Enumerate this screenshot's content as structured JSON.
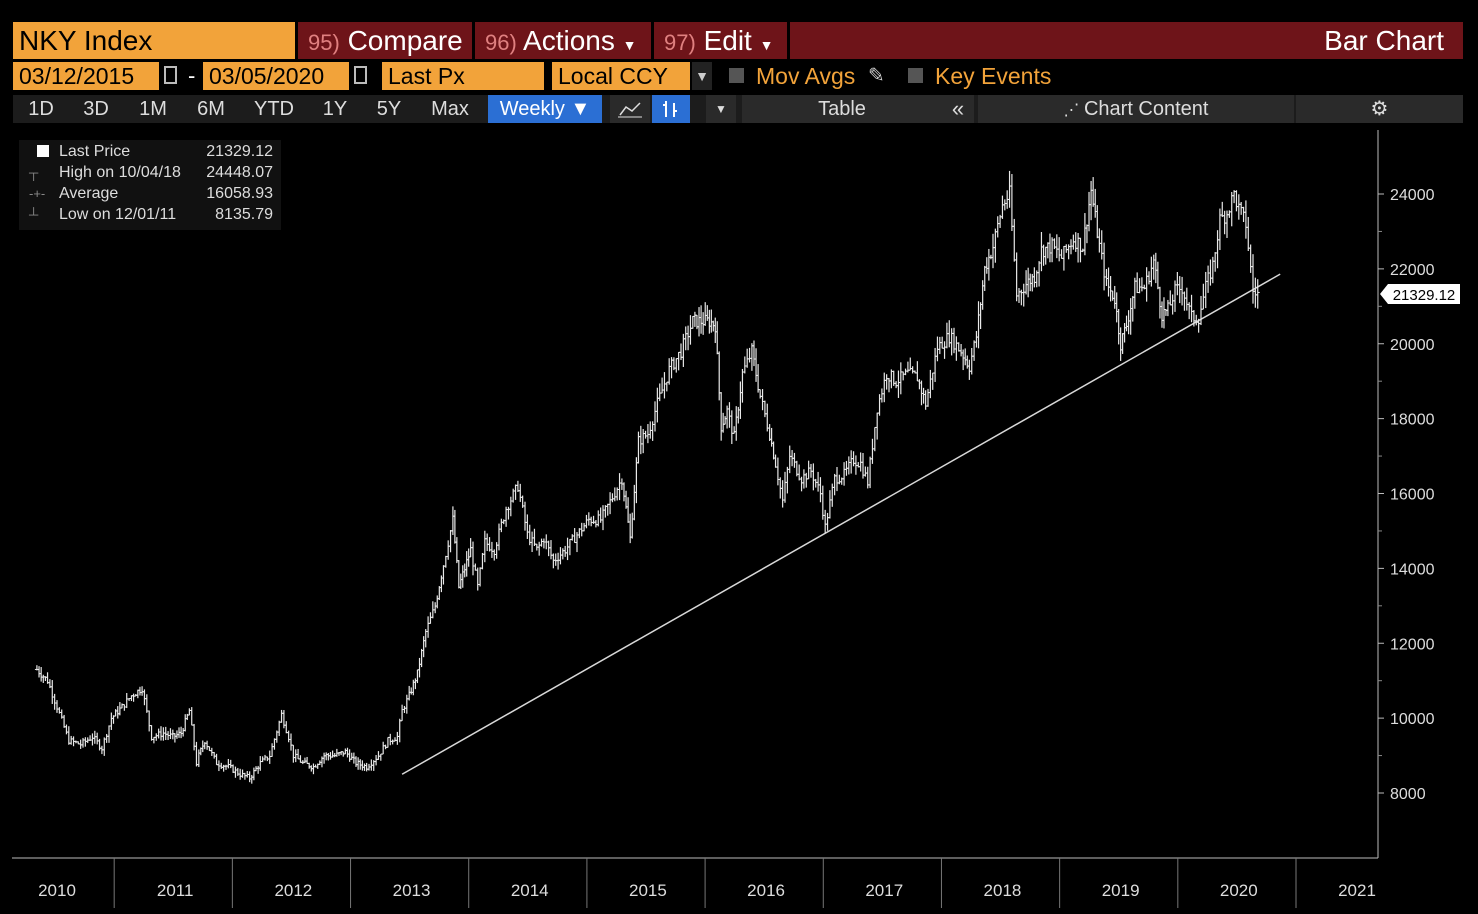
{
  "header": {
    "ticker": "NKY Index",
    "compare_num": "95)",
    "compare_label": "Compare",
    "actions_num": "96)",
    "actions_label": "Actions",
    "edit_num": "97)",
    "edit_label": "Edit",
    "chart_type": "Bar Chart"
  },
  "params": {
    "start_date": "03/12/2015",
    "end_date": "03/05/2020",
    "field": "Last Px",
    "currency": "Local CCY",
    "mov_avgs": "Mov Avgs",
    "key_events": "Key Events"
  },
  "toolbar": {
    "periods": [
      "1D",
      "3D",
      "1M",
      "6M",
      "YTD",
      "1Y",
      "5Y",
      "Max"
    ],
    "frequency": "Weekly ▼",
    "table": "Table",
    "collapse": "«",
    "chart_content": "Chart Content"
  },
  "legend": {
    "last_label": "Last Price",
    "last_value": "21329.12",
    "high_label": "High on 10/04/18",
    "high_value": "24448.07",
    "avg_label": "Average",
    "avg_value": "16058.93",
    "low_label": "Low on 12/01/11",
    "low_value": "8135.79"
  },
  "colors": {
    "accent": "#f2a33a",
    "header_bg": "#6e1419",
    "selected": "#2b6fd4",
    "price": "#ffffff"
  },
  "chart_data": {
    "type": "line",
    "x_type": "year",
    "ylim": [
      6500,
      25500
    ],
    "xlim": [
      2009.8,
      2021.2
    ],
    "yticks": [
      8000,
      10000,
      12000,
      14000,
      16000,
      18000,
      20000,
      22000,
      24000
    ],
    "ytick_labels": [
      "8000",
      "10000",
      "12000",
      "14000",
      "16000",
      "18000",
      "20000",
      "22000",
      "24000"
    ],
    "xticks": [
      "2010",
      "2011",
      "2012",
      "2013",
      "2014",
      "2015",
      "2016",
      "2017",
      "2018",
      "2019",
      "2020",
      "2021"
    ],
    "last_value_label": "21329.12",
    "series": [
      {
        "x": [
          2009.83,
          2009.92,
          2010.0,
          2010.1,
          2010.2,
          2010.3,
          2010.38,
          2010.46,
          2010.55,
          2010.63,
          2010.72,
          2010.8,
          2010.9,
          2010.98,
          2011.05,
          2011.12,
          2011.18,
          2011.2,
          2011.25,
          2011.35,
          2011.45,
          2011.55,
          2011.63,
          2011.72,
          2011.8,
          2011.9,
          2011.96,
          2012.0,
          2012.08,
          2012.17,
          2012.26,
          2012.35,
          2012.44,
          2012.53,
          2012.62,
          2012.72,
          2012.8,
          2012.88,
          2012.92,
          2012.98,
          2013.05,
          2013.12,
          2013.2,
          2013.27,
          2013.35,
          2013.4,
          2013.45,
          2013.5,
          2013.56,
          2013.62,
          2013.7,
          2013.8,
          2013.9,
          2013.98,
          2014.06,
          2014.12,
          2014.2,
          2014.3,
          2014.4,
          2014.5,
          2014.6,
          2014.7,
          2014.78,
          2014.85,
          2014.92,
          2015.0,
          2015.08,
          2015.18,
          2015.28,
          2015.38,
          2015.45,
          2015.52,
          2015.57,
          2015.62,
          2015.67,
          2015.73,
          2015.8,
          2015.88,
          2015.95,
          2016.03,
          2016.08,
          2016.14,
          2016.2,
          2016.3,
          2016.38,
          2016.46,
          2016.5,
          2016.58,
          2016.66,
          2016.74,
          2016.8,
          2016.86,
          2016.94,
          2017.02,
          2017.1,
          2017.2,
          2017.28,
          2017.35,
          2017.45,
          2017.55,
          2017.65,
          2017.72,
          2017.78,
          2017.85,
          2017.92,
          2018.0,
          2018.06,
          2018.12,
          2018.2,
          2018.27,
          2018.33,
          2018.42,
          2018.5,
          2018.6,
          2018.68,
          2018.75,
          2018.82,
          2018.88,
          2018.95,
          2019.0,
          2019.05,
          2019.12,
          2019.2,
          2019.28,
          2019.35,
          2019.4,
          2019.46,
          2019.52,
          2019.6,
          2019.66,
          2019.72,
          2019.78,
          2019.84,
          2019.9,
          2019.96,
          2020.0,
          2020.06,
          2020.12,
          2020.16
        ],
        "values": [
          11300,
          11000,
          10300,
          9400,
          9300,
          9500,
          9200,
          10000,
          10300,
          10600,
          10800,
          9500,
          9600,
          9500,
          9600,
          10200,
          8800,
          9000,
          9400,
          8800,
          8700,
          8500,
          8400,
          8800,
          9000,
          10100,
          9500,
          9000,
          8800,
          8700,
          9000,
          9000,
          9100,
          8800,
          8700,
          9000,
          9400,
          9500,
          10200,
          10600,
          11200,
          12300,
          13000,
          14100,
          15300,
          13500,
          14000,
          14500,
          13500,
          14700,
          14500,
          15600,
          16200,
          14900,
          14500,
          14800,
          14200,
          14500,
          14900,
          15300,
          15300,
          15900,
          16400,
          14800,
          17400,
          17600,
          18400,
          19300,
          19800,
          20600,
          20600,
          20600,
          20500,
          17800,
          18200,
          17500,
          19200,
          19800,
          18600,
          17600,
          16800,
          15800,
          17000,
          16400,
          16600,
          16000,
          15100,
          16400,
          16500,
          16900,
          16800,
          16300,
          18300,
          19200,
          19000,
          19200,
          19100,
          18400,
          19900,
          20200,
          19800,
          19400,
          20200,
          22000,
          22600,
          23700,
          24000,
          21300,
          21600,
          21800,
          22500,
          22600,
          22300,
          22800,
          22600,
          24100,
          22600,
          21600,
          21200,
          20000,
          20500,
          21500,
          21500,
          22200,
          20800,
          20900,
          21400,
          21500,
          20700,
          20700,
          21500,
          22100,
          23300,
          23500,
          24000,
          23600,
          23200,
          21400,
          21329
        ]
      }
    ],
    "trendline": {
      "x": [
        2012.92,
        2020.15
      ],
      "values": [
        8500,
        21500
      ]
    }
  }
}
